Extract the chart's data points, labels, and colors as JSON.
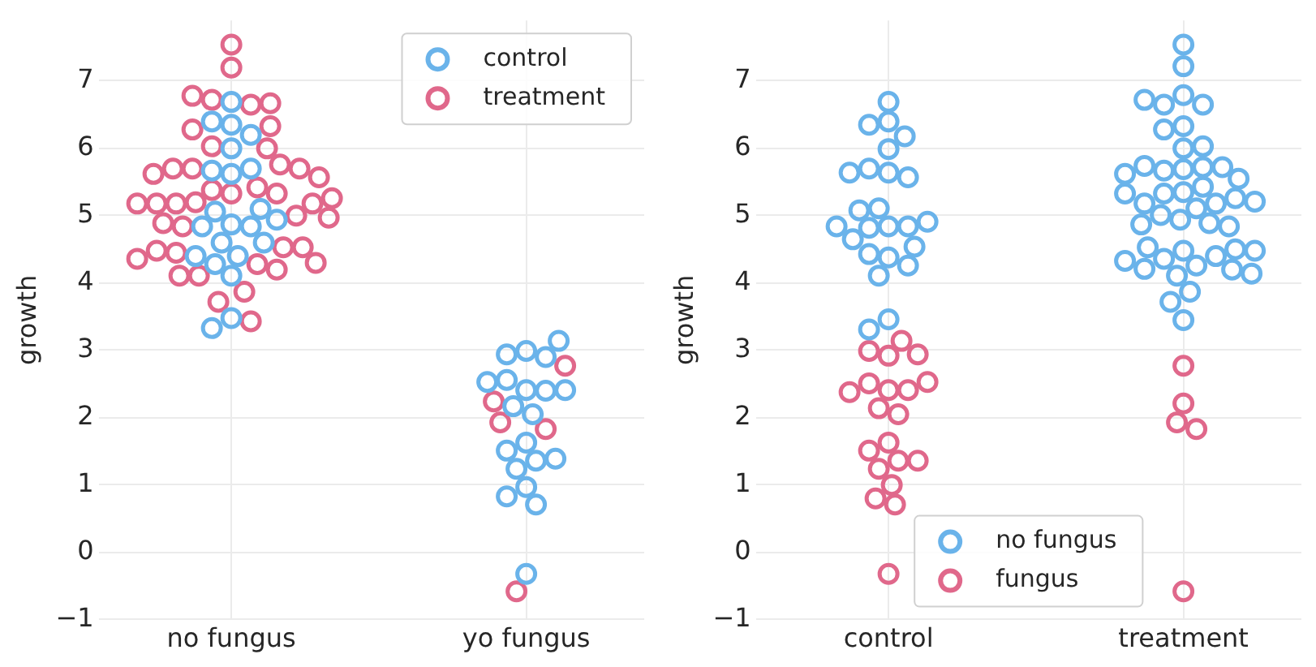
{
  "chart_data": [
    {
      "type": "scatter",
      "ylabel": "growth",
      "categories": [
        "no fungus",
        "yo fungus"
      ],
      "ylim": [
        -1,
        7.9
      ],
      "yticks": [
        -1,
        0,
        1,
        2,
        3,
        4,
        5,
        6,
        7
      ],
      "grid": true,
      "legend": "top right",
      "marker": "circle",
      "series": [
        {
          "name": "control",
          "color": "#6ab3ea",
          "x": [
            "no fungus",
            "no fungus",
            "no fungus",
            "no fungus",
            "no fungus",
            "no fungus",
            "no fungus",
            "no fungus",
            "no fungus",
            "no fungus",
            "no fungus",
            "no fungus",
            "no fungus",
            "no fungus",
            "no fungus",
            "no fungus",
            "no fungus",
            "no fungus",
            "no fungus",
            "no fungus",
            "no fungus",
            "no fungus",
            "yo fungus",
            "yo fungus",
            "yo fungus",
            "yo fungus",
            "yo fungus",
            "yo fungus",
            "yo fungus",
            "yo fungus",
            "yo fungus",
            "yo fungus",
            "yo fungus",
            "yo fungus",
            "yo fungus",
            "yo fungus",
            "yo fungus",
            "yo fungus",
            "yo fungus",
            "yo fungus",
            "yo fungus",
            "yo fungus"
          ],
          "values": [
            6.69,
            6.35,
            6.4,
            6.2,
            6.0,
            5.62,
            4.87,
            4.6,
            4.84,
            5.06,
            5.1,
            5.67,
            5.7,
            4.84,
            4.94,
            4.6,
            4.4,
            4.11,
            4.28,
            3.48,
            3.33,
            4.4,
            2.99,
            2.41,
            2.94,
            2.9,
            2.56,
            2.4,
            2.17,
            3.14,
            2.53,
            2.41,
            2.05,
            1.63,
            1.51,
            1.36,
            1.24,
            0.97,
            1.39,
            0.83,
            0.71,
            -0.32
          ]
        },
        {
          "name": "treatment",
          "color": "#e0688b",
          "x": [
            "no fungus",
            "no fungus",
            "no fungus",
            "no fungus",
            "no fungus",
            "no fungus",
            "no fungus",
            "no fungus",
            "no fungus",
            "no fungus",
            "no fungus",
            "no fungus",
            "no fungus",
            "no fungus",
            "no fungus",
            "no fungus",
            "no fungus",
            "no fungus",
            "no fungus",
            "no fungus",
            "no fungus",
            "no fungus",
            "no fungus",
            "no fungus",
            "no fungus",
            "no fungus",
            "no fungus",
            "no fungus",
            "no fungus",
            "no fungus",
            "no fungus",
            "no fungus",
            "no fungus",
            "no fungus",
            "no fungus",
            "no fungus",
            "no fungus",
            "no fungus",
            "no fungus",
            "no fungus",
            "no fungus",
            "no fungus",
            "no fungus",
            "yo fungus",
            "yo fungus",
            "yo fungus",
            "yo fungus",
            "yo fungus"
          ],
          "values": [
            7.54,
            7.2,
            6.72,
            6.65,
            6.78,
            6.67,
            6.28,
            6.33,
            6.03,
            6.0,
            5.7,
            5.76,
            5.7,
            5.7,
            5.62,
            5.33,
            5.2,
            5.42,
            5.38,
            5.57,
            5.33,
            5.18,
            5.0,
            5.18,
            5.18,
            5.18,
            5.26,
            4.97,
            4.84,
            4.89,
            4.53,
            4.45,
            4.53,
            4.48,
            4.28,
            4.3,
            4.36,
            4.11,
            4.2,
            4.11,
            3.72,
            3.87,
            3.43,
            2.77,
            2.24,
            1.93,
            1.83,
            -0.58
          ]
        }
      ]
    },
    {
      "type": "scatter",
      "ylabel": "growth",
      "categories": [
        "control",
        "treatment"
      ],
      "ylim": [
        -1,
        7.9
      ],
      "yticks": [
        -1,
        0,
        1,
        2,
        3,
        4,
        5,
        6,
        7
      ],
      "grid": true,
      "legend": "bottom",
      "marker": "circle",
      "series": [
        {
          "name": "no fungus",
          "color": "#6ab3ea",
          "x": [
            "control",
            "control",
            "control",
            "control",
            "control",
            "control",
            "control",
            "control",
            "control",
            "control",
            "control",
            "control",
            "control",
            "control",
            "control",
            "control",
            "control",
            "control",
            "control",
            "control",
            "control",
            "control",
            "control",
            "control",
            "treatment",
            "treatment",
            "treatment",
            "treatment",
            "treatment",
            "treatment",
            "treatment",
            "treatment",
            "treatment",
            "treatment",
            "treatment",
            "treatment",
            "treatment",
            "treatment",
            "treatment",
            "treatment",
            "treatment",
            "treatment",
            "treatment",
            "treatment",
            "treatment",
            "treatment",
            "treatment",
            "treatment",
            "treatment",
            "treatment",
            "treatment",
            "treatment",
            "treatment",
            "treatment",
            "treatment",
            "treatment",
            "treatment",
            "treatment",
            "treatment",
            "treatment",
            "treatment",
            "treatment",
            "treatment",
            "treatment",
            "treatment",
            "treatment",
            "treatment",
            "treatment",
            "treatment",
            "treatment"
          ],
          "values": [
            6.69,
            6.4,
            6.35,
            5.99,
            5.64,
            5.7,
            5.57,
            6.18,
            5.64,
            4.84,
            4.82,
            4.84,
            5.11,
            5.08,
            4.91,
            4.65,
            4.38,
            4.43,
            4.26,
            4.54,
            4.11,
            3.46,
            4.84,
            3.31,
            7.54,
            7.22,
            6.79,
            6.65,
            6.65,
            6.72,
            6.33,
            6.28,
            6.0,
            6.03,
            5.69,
            5.35,
            5.67,
            5.72,
            5.74,
            5.72,
            5.62,
            5.55,
            5.43,
            5.33,
            5.18,
            5.18,
            5.26,
            5.33,
            5.21,
            5.11,
            4.94,
            5.01,
            4.89,
            4.87,
            4.84,
            4.48,
            4.36,
            4.26,
            4.4,
            4.21,
            4.2,
            4.53,
            4.33,
            4.5,
            4.48,
            4.11,
            4.14,
            3.87,
            3.72,
            3.45
          ]
        },
        {
          "name": "fungus",
          "color": "#e0688b",
          "x": [
            "control",
            "control",
            "control",
            "control",
            "control",
            "control",
            "control",
            "control",
            "control",
            "control",
            "control",
            "control",
            "control",
            "control",
            "control",
            "control",
            "control",
            "control",
            "control",
            "control",
            "treatment",
            "treatment",
            "treatment",
            "treatment",
            "treatment"
          ],
          "values": [
            2.92,
            2.99,
            3.14,
            2.41,
            2.51,
            2.41,
            2.14,
            2.05,
            2.38,
            2.53,
            2.94,
            1.63,
            1.51,
            1.36,
            1.36,
            1.24,
            1.0,
            0.8,
            0.71,
            -0.32,
            2.77,
            2.21,
            1.93,
            1.83,
            -0.58
          ]
        }
      ]
    }
  ]
}
